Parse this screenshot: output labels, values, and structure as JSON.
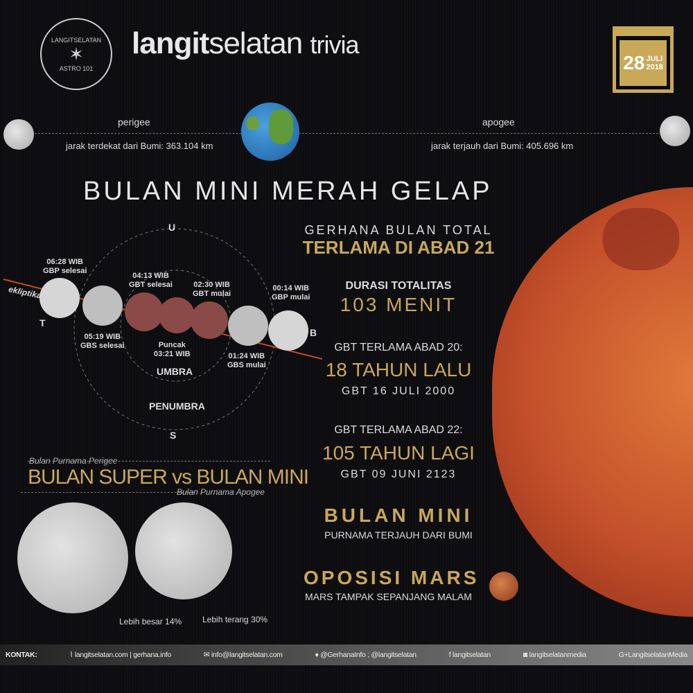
{
  "logo": {
    "text_top": "LANGITSELATAN",
    "text_bottom": "ASTRO 101"
  },
  "header": {
    "brand_bold": "langit",
    "brand_light": "selatan",
    "suffix": "trivia"
  },
  "calendar": {
    "day": "28",
    "month": "JULI",
    "year": "2018",
    "color": "#c9a85a"
  },
  "distance": {
    "perigee_label": "perigee",
    "perigee_text": "jarak terdekat dari Bumi: 363.104 km",
    "apogee_label": "apogee",
    "apogee_text": "jarak terjauh dari Bumi: 405.696 km"
  },
  "main_title": "BULAN MINI MERAH GELAP",
  "diagram": {
    "north": "U",
    "south": "S",
    "east": "T",
    "west": "B",
    "ecliptic": "ekliptika",
    "umbra": "UMBRA",
    "penumbra": "PENUMBRA",
    "events": [
      {
        "time": "06:28 WIB",
        "label": "GBP selesai"
      },
      {
        "time": "05:19 WIB",
        "label": "GBS selesai"
      },
      {
        "time": "04:13 WIB",
        "label": "GBT selesai"
      },
      {
        "time": "03:21 WIB",
        "label": "Puncak"
      },
      {
        "time": "02:30 WIB",
        "label": "GBT mulai"
      },
      {
        "time": "01:24 WIB",
        "label": "GBS mulai"
      },
      {
        "time": "00:14 WIB",
        "label": "GBP mulai"
      }
    ]
  },
  "facts": {
    "f1_small": "GERHANA BULAN TOTAL",
    "f1_big": "TERLAMA DI ABAD 21",
    "f2_small": "DURASI TOTALITAS",
    "f2_big": "103 MENIT",
    "f3_small": "GBT TERLAMA ABAD 20:",
    "f3_big": "18 TAHUN LALU",
    "f3_date": "GBT 16 JULI 2000",
    "f4_small": "GBT TERLAMA ABAD 22:",
    "f4_big": "105 TAHUN LAGI",
    "f4_date": "GBT 09 JUNI 2123",
    "f5_big": "BULAN MINI",
    "f5_small": "PURNAMA TERJAUH DARI BUMI",
    "f6_big": "OPOSISI MARS",
    "f6_small": "MARS TAMPAK SEPANJANG MALAM"
  },
  "compare": {
    "perigee_caption": "Bulan Purnama Perigee",
    "title": "BULAN SUPER vs BULAN MINI",
    "apogee_caption": "Bulan Purnama Apogee",
    "bigger": "Lebih besar 14%",
    "brighter": "Lebih terang 30%"
  },
  "footer": {
    "label": "KONTAK:",
    "web": "langitselatan.com | gerhana.info",
    "email": "info@langitselatan.com",
    "twitter": "@GerhanaInfo ; @langitselatan",
    "facebook": "langitselatan",
    "instagram": "langitselatanmedia",
    "gplus": "LangitselatanMedia"
  }
}
